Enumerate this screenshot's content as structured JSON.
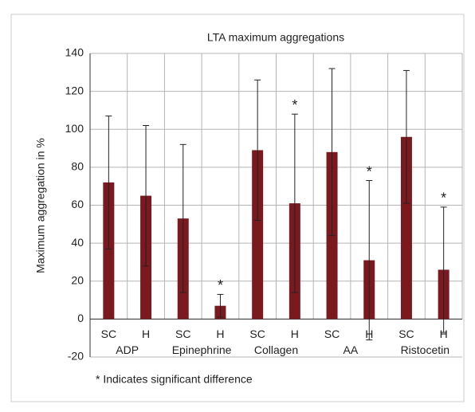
{
  "chart_data": {
    "type": "bar",
    "title": "LTA maximum aggregations",
    "y_label": "Maximum aggregation in %",
    "categories": [
      "SC",
      "H",
      "SC",
      "H",
      "SC",
      "H",
      "SC",
      "H",
      "SC",
      "H"
    ],
    "groups": [
      "ADP",
      "Epinephrine",
      "Collagen",
      "AA",
      "Ristocetin"
    ],
    "values": [
      72,
      65,
      53,
      7,
      89,
      61,
      88,
      31,
      96,
      26
    ],
    "errors": [
      35,
      37,
      39,
      6,
      37,
      47,
      44,
      42,
      35,
      33
    ],
    "markers": [
      null,
      null,
      null,
      "*",
      null,
      "*",
      null,
      "*",
      null,
      "*"
    ],
    "annotation": "* Indicates significant difference",
    "color": "#7a1a1f",
    "ylim": [
      -20,
      140
    ],
    "yticks": [
      -20,
      0,
      20,
      40,
      60,
      80,
      100,
      120,
      140
    ],
    "grid": true
  }
}
